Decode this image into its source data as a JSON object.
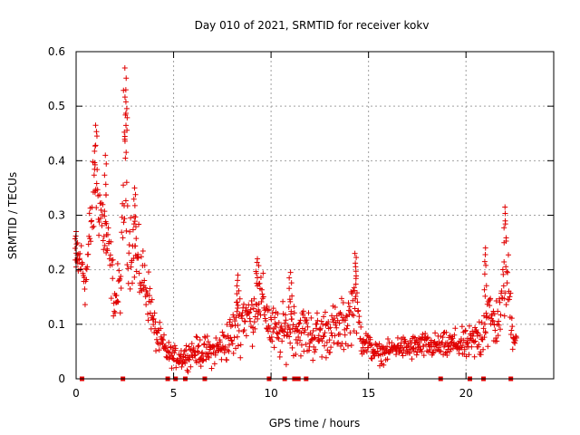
{
  "chart_data": {
    "type": "scatter",
    "title": "Day 010 of 2021, SRMTID for receiver kokv",
    "xlabel": "GPS time / hours",
    "ylabel": "SRMTID / TECUs",
    "xlim": [
      0,
      24.5
    ],
    "ylim": [
      0,
      0.6
    ],
    "x_ticks": [
      0,
      5,
      10,
      15,
      20
    ],
    "x_tick_labels": [
      "0",
      "5",
      "10",
      "15",
      "20"
    ],
    "y_ticks": [
      0,
      0.1,
      0.2,
      0.3,
      0.4,
      0.5,
      0.6
    ],
    "y_tick_labels": [
      "0",
      "0.1",
      "0.2",
      "0.3",
      "0.4",
      "0.5",
      "0.6"
    ],
    "grid": true,
    "marker": "+",
    "color": "#e00000",
    "zero_markers_x": [
      0.3,
      2.4,
      4.7,
      5.1,
      5.6,
      6.6,
      9.9,
      10.7,
      11.2,
      11.4,
      11.8,
      18.7,
      20.2,
      20.9,
      22.3
    ],
    "envelope_x": [
      0.0,
      0.2,
      0.5,
      0.8,
      1.0,
      1.2,
      1.5,
      1.8,
      2.0,
      2.3,
      2.5,
      2.7,
      3.0,
      3.2,
      3.5,
      3.8,
      4.0,
      4.3,
      4.6,
      5.0,
      5.5,
      6.0,
      6.5,
      7.0,
      7.5,
      8.0,
      8.3,
      8.6,
      9.0,
      9.3,
      9.6,
      10.0,
      10.5,
      11.0,
      11.5,
      12.0,
      12.5,
      13.0,
      13.5,
      14.0,
      14.3,
      14.6,
      15.0,
      15.5,
      16.0,
      16.5,
      17.0,
      17.5,
      18.0,
      18.5,
      19.0,
      19.5,
      20.0,
      20.5,
      20.8,
      21.0,
      21.5,
      21.8,
      22.0,
      22.2,
      22.4,
      22.6
    ],
    "envelope_mean": [
      0.2,
      0.22,
      0.18,
      0.3,
      0.36,
      0.32,
      0.26,
      0.2,
      0.14,
      0.18,
      0.38,
      0.25,
      0.24,
      0.2,
      0.18,
      0.14,
      0.09,
      0.07,
      0.05,
      0.04,
      0.04,
      0.05,
      0.05,
      0.05,
      0.06,
      0.08,
      0.1,
      0.12,
      0.11,
      0.15,
      0.14,
      0.09,
      0.08,
      0.1,
      0.09,
      0.08,
      0.08,
      0.09,
      0.09,
      0.11,
      0.15,
      0.08,
      0.06,
      0.045,
      0.05,
      0.06,
      0.055,
      0.06,
      0.06,
      0.06,
      0.06,
      0.065,
      0.06,
      0.07,
      0.08,
      0.12,
      0.1,
      0.12,
      0.2,
      0.16,
      0.08,
      0.08
    ],
    "envelope_spread": [
      0.06,
      0.05,
      0.06,
      0.08,
      0.08,
      0.08,
      0.08,
      0.06,
      0.05,
      0.06,
      0.14,
      0.08,
      0.08,
      0.07,
      0.06,
      0.05,
      0.04,
      0.03,
      0.025,
      0.02,
      0.025,
      0.025,
      0.03,
      0.03,
      0.035,
      0.05,
      0.06,
      0.06,
      0.05,
      0.06,
      0.05,
      0.05,
      0.05,
      0.06,
      0.05,
      0.05,
      0.05,
      0.05,
      0.05,
      0.06,
      0.06,
      0.04,
      0.025,
      0.02,
      0.02,
      0.02,
      0.025,
      0.025,
      0.025,
      0.025,
      0.025,
      0.03,
      0.03,
      0.04,
      0.05,
      0.08,
      0.05,
      0.05,
      0.1,
      0.07,
      0.03,
      0.03
    ],
    "peaks": [
      {
        "x": 0.0,
        "y": 0.27
      },
      {
        "x": 1.0,
        "y": 0.465
      },
      {
        "x": 1.5,
        "y": 0.41
      },
      {
        "x": 2.5,
        "y": 0.57
      },
      {
        "x": 2.55,
        "y": 0.53
      },
      {
        "x": 3.0,
        "y": 0.35
      },
      {
        "x": 8.3,
        "y": 0.19
      },
      {
        "x": 9.3,
        "y": 0.22
      },
      {
        "x": 11.0,
        "y": 0.195
      },
      {
        "x": 14.3,
        "y": 0.23
      },
      {
        "x": 21.0,
        "y": 0.24
      },
      {
        "x": 22.0,
        "y": 0.315
      }
    ]
  }
}
